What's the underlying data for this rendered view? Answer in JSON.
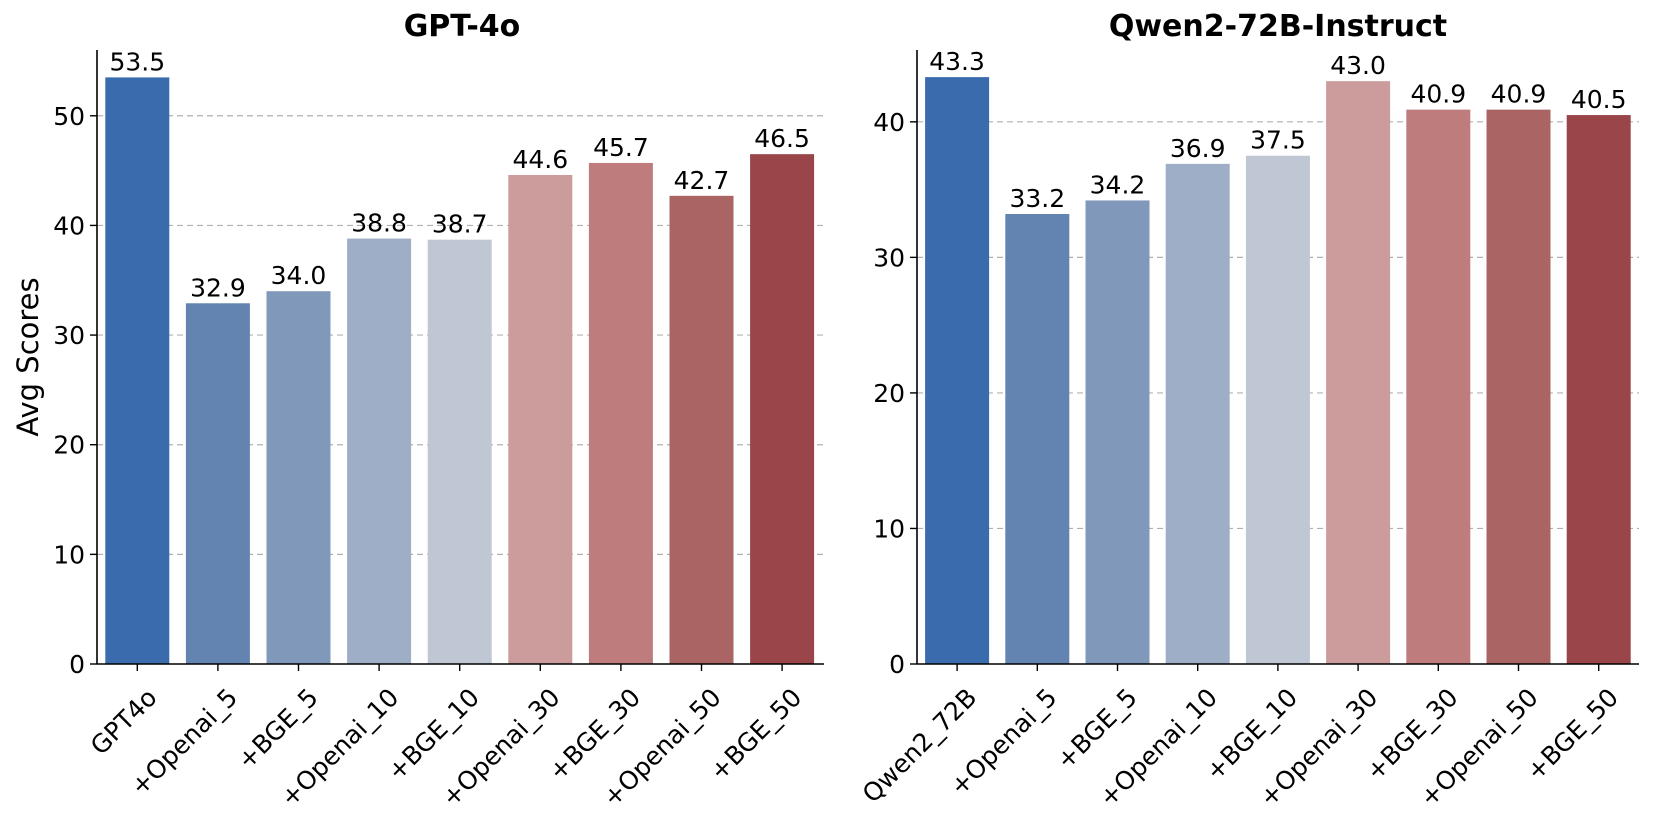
{
  "chart_data": [
    {
      "type": "bar",
      "title": "GPT-4o",
      "ylabel": "Avg Scores",
      "xlabel": "",
      "categories": [
        "GPT4o",
        "+Openai_5",
        "+BGE_5",
        "+Openai_10",
        "+BGE_10",
        "+Openai_30",
        "+BGE_30",
        "+Openai_50",
        "+BGE_50"
      ],
      "values": [
        53.5,
        32.9,
        34.0,
        38.8,
        38.7,
        44.6,
        45.7,
        42.7,
        46.5
      ],
      "value_labels": [
        "53.5",
        "32.9",
        "34.0",
        "38.8",
        "38.7",
        "44.6",
        "45.7",
        "42.7",
        "46.5"
      ],
      "colors": [
        "#3a6cad",
        "#6383b0",
        "#8098b9",
        "#9eaec6",
        "#bfc6d4",
        "#cc9b9b",
        "#be7c7c",
        "#ab6464",
        "#9a4549"
      ],
      "ylim": [
        0,
        56
      ],
      "yticks": [
        0,
        10,
        20,
        30,
        40,
        50
      ],
      "ytick_labels": [
        "0",
        "10",
        "20",
        "30",
        "40",
        "50"
      ],
      "grid": "y, dashed"
    },
    {
      "type": "bar",
      "title": "Qwen2-72B-Instruct",
      "ylabel": "",
      "xlabel": "",
      "categories": [
        "Qwen2_72B",
        "+Openai_5",
        "+BGE_5",
        "+Openai_10",
        "+BGE_10",
        "+Openai_30",
        "+BGE_30",
        "+Openai_50",
        "+BGE_50"
      ],
      "values": [
        43.3,
        33.2,
        34.2,
        36.9,
        37.5,
        43.0,
        40.9,
        40.9,
        40.5
      ],
      "value_labels": [
        "43.3",
        "33.2",
        "34.2",
        "36.9",
        "37.5",
        "43.0",
        "40.9",
        "40.9",
        "40.5"
      ],
      "colors": [
        "#3a6cad",
        "#6383b0",
        "#8098b9",
        "#9eaec6",
        "#bfc6d4",
        "#cc9b9b",
        "#be7c7c",
        "#ab6464",
        "#9a4549"
      ],
      "ylim": [
        0,
        45.3
      ],
      "yticks": [
        0,
        10,
        20,
        30,
        40
      ],
      "ytick_labels": [
        "0",
        "10",
        "20",
        "30",
        "40"
      ],
      "grid": "y, dashed"
    }
  ]
}
